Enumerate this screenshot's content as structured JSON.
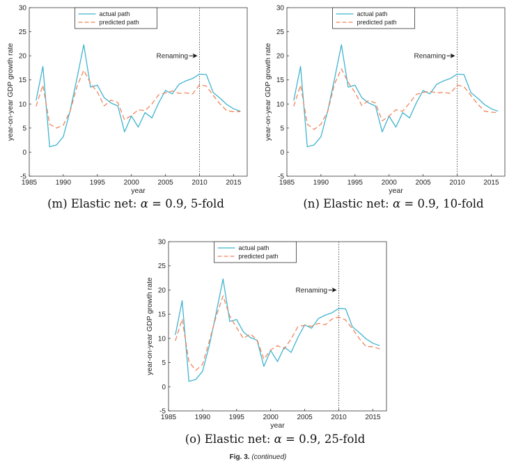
{
  "colors": {
    "actual": "#3fb3cf",
    "predicted": "#f0845a",
    "axis": "#333333",
    "vline": "#555555"
  },
  "charts": [
    {
      "id": "m",
      "caption": {
        "label": "(m) Elastic net: ",
        "alpha": "α",
        "rest": " = 0.9, 5-fold"
      },
      "chart_data": {
        "type": "line",
        "x": [
          1986,
          1987,
          1988,
          1989,
          1990,
          1991,
          1992,
          1993,
          1994,
          1995,
          1996,
          1997,
          1998,
          1999,
          2000,
          2001,
          2002,
          2003,
          2004,
          2005,
          2006,
          2007,
          2008,
          2009,
          2010,
          2011,
          2012,
          2013,
          2014,
          2015,
          2016
        ],
        "series": [
          {
            "name": "actual path",
            "values": [
              10.7,
              17.8,
              1.1,
              1.5,
              3.2,
              8.6,
              15.3,
              22.3,
              13.5,
              13.9,
              11.3,
              10.2,
              9.6,
              4.2,
              7.5,
              5.2,
              8.2,
              7.1,
              10.2,
              12.8,
              12.1,
              14.1,
              14.8,
              15.3,
              16.2,
              16.1,
              12.4,
              11.2,
              9.9,
              9.0,
              8.5
            ]
          },
          {
            "name": "predicted path",
            "values": [
              9.5,
              13.9,
              5.8,
              5.0,
              5.6,
              8.5,
              13.6,
              17.0,
              14.3,
              12.5,
              9.6,
              10.8,
              10.3,
              6.7,
              7.6,
              8.8,
              8.6,
              10.0,
              11.9,
              12.3,
              12.7,
              12.2,
              12.3,
              12.1,
              14.0,
              13.7,
              11.8,
              10.0,
              8.6,
              8.4,
              8.4
            ]
          }
        ],
        "xlabel": "year",
        "ylabel": "year-on-year GDP growth rate",
        "xlim": [
          1985,
          2017
        ],
        "ylim": [
          -5,
          30
        ],
        "xticks": [
          1985,
          1990,
          1995,
          2000,
          2005,
          2010,
          2015
        ],
        "yticks": [
          -5,
          0,
          5,
          10,
          15,
          20,
          25,
          30
        ],
        "legend": "top-center",
        "grid": false,
        "annotation": {
          "text": "Renaming",
          "vline_x": 2010,
          "arrow_y": 20
        }
      }
    },
    {
      "id": "n",
      "caption": {
        "label": "(n) Elastic net: ",
        "alpha": "α",
        "rest": " = 0.9, 10-fold"
      },
      "chart_data": {
        "type": "line",
        "x": [
          1986,
          1987,
          1988,
          1989,
          1990,
          1991,
          1992,
          1993,
          1994,
          1995,
          1996,
          1997,
          1998,
          1999,
          2000,
          2001,
          2002,
          2003,
          2004,
          2005,
          2006,
          2007,
          2008,
          2009,
          2010,
          2011,
          2012,
          2013,
          2014,
          2015,
          2016
        ],
        "series": [
          {
            "name": "actual path",
            "values": [
              10.7,
              17.8,
              1.1,
              1.5,
              3.2,
              8.6,
              15.3,
              22.3,
              13.5,
              13.9,
              11.3,
              10.2,
              9.6,
              4.2,
              7.5,
              5.2,
              8.2,
              7.1,
              10.2,
              12.8,
              12.1,
              14.1,
              14.8,
              15.3,
              16.2,
              16.1,
              12.4,
              11.2,
              9.9,
              9.0,
              8.5
            ]
          },
          {
            "name": "predicted path",
            "values": [
              9.5,
              13.9,
              5.8,
              4.7,
              5.8,
              8.5,
              14.2,
              17.3,
              14.5,
              12.4,
              9.7,
              10.7,
              10.2,
              6.5,
              7.5,
              8.8,
              8.5,
              10.2,
              12.0,
              12.4,
              12.6,
              12.3,
              12.4,
              12.2,
              13.9,
              13.6,
              11.8,
              10.0,
              8.5,
              8.3,
              8.2
            ]
          }
        ],
        "xlabel": "year",
        "ylabel": "year-on-year GDP growth rate",
        "xlim": [
          1985,
          2017
        ],
        "ylim": [
          -5,
          30
        ],
        "xticks": [
          1985,
          1990,
          1995,
          2000,
          2005,
          2010,
          2015
        ],
        "yticks": [
          -5,
          0,
          5,
          10,
          15,
          20,
          25,
          30
        ],
        "legend": "top-center",
        "grid": false,
        "annotation": {
          "text": "Renaming",
          "vline_x": 2010,
          "arrow_y": 20
        }
      }
    },
    {
      "id": "o",
      "caption": {
        "label": "(o) Elastic net: ",
        "alpha": "α",
        "rest": " = 0.9, 25-fold"
      },
      "chart_data": {
        "type": "line",
        "x": [
          1986,
          1987,
          1988,
          1989,
          1990,
          1991,
          1992,
          1993,
          1994,
          1995,
          1996,
          1997,
          1998,
          1999,
          2000,
          2001,
          2002,
          2003,
          2004,
          2005,
          2006,
          2007,
          2008,
          2009,
          2010,
          2011,
          2012,
          2013,
          2014,
          2015,
          2016
        ],
        "series": [
          {
            "name": "actual path",
            "values": [
              10.7,
              17.8,
              1.1,
              1.5,
              3.2,
              8.6,
              15.3,
              22.3,
              13.5,
              13.9,
              11.3,
              10.2,
              9.6,
              4.2,
              7.5,
              5.2,
              8.2,
              7.1,
              10.2,
              12.8,
              12.1,
              14.1,
              14.8,
              15.3,
              16.2,
              16.1,
              12.4,
              11.2,
              9.9,
              9.0,
              8.5
            ]
          },
          {
            "name": "predicted path",
            "values": [
              9.5,
              14.0,
              5.2,
              3.4,
              4.6,
              9.5,
              14.6,
              18.8,
              14.6,
              12.2,
              10.0,
              10.9,
              9.7,
              5.7,
              7.6,
              8.5,
              7.8,
              9.9,
              12.4,
              12.7,
              12.5,
              13.1,
              12.8,
              14.0,
              14.4,
              13.8,
              12.0,
              10.0,
              8.3,
              8.3,
              7.8
            ]
          }
        ],
        "xlabel": "year",
        "ylabel": "year-on-year GDP growth rate",
        "xlim": [
          1985,
          2017
        ],
        "ylim": [
          -5,
          30
        ],
        "xticks": [
          1985,
          1990,
          1995,
          2000,
          2005,
          2010,
          2015
        ],
        "yticks": [
          -5,
          0,
          5,
          10,
          15,
          20,
          25,
          30
        ],
        "legend": "top-center",
        "grid": false,
        "annotation": {
          "text": "Renaming",
          "vline_x": 2010,
          "arrow_y": 20
        }
      }
    }
  ],
  "figure_caption": {
    "label": "Fig. 3.",
    "continued": "(continued)"
  }
}
